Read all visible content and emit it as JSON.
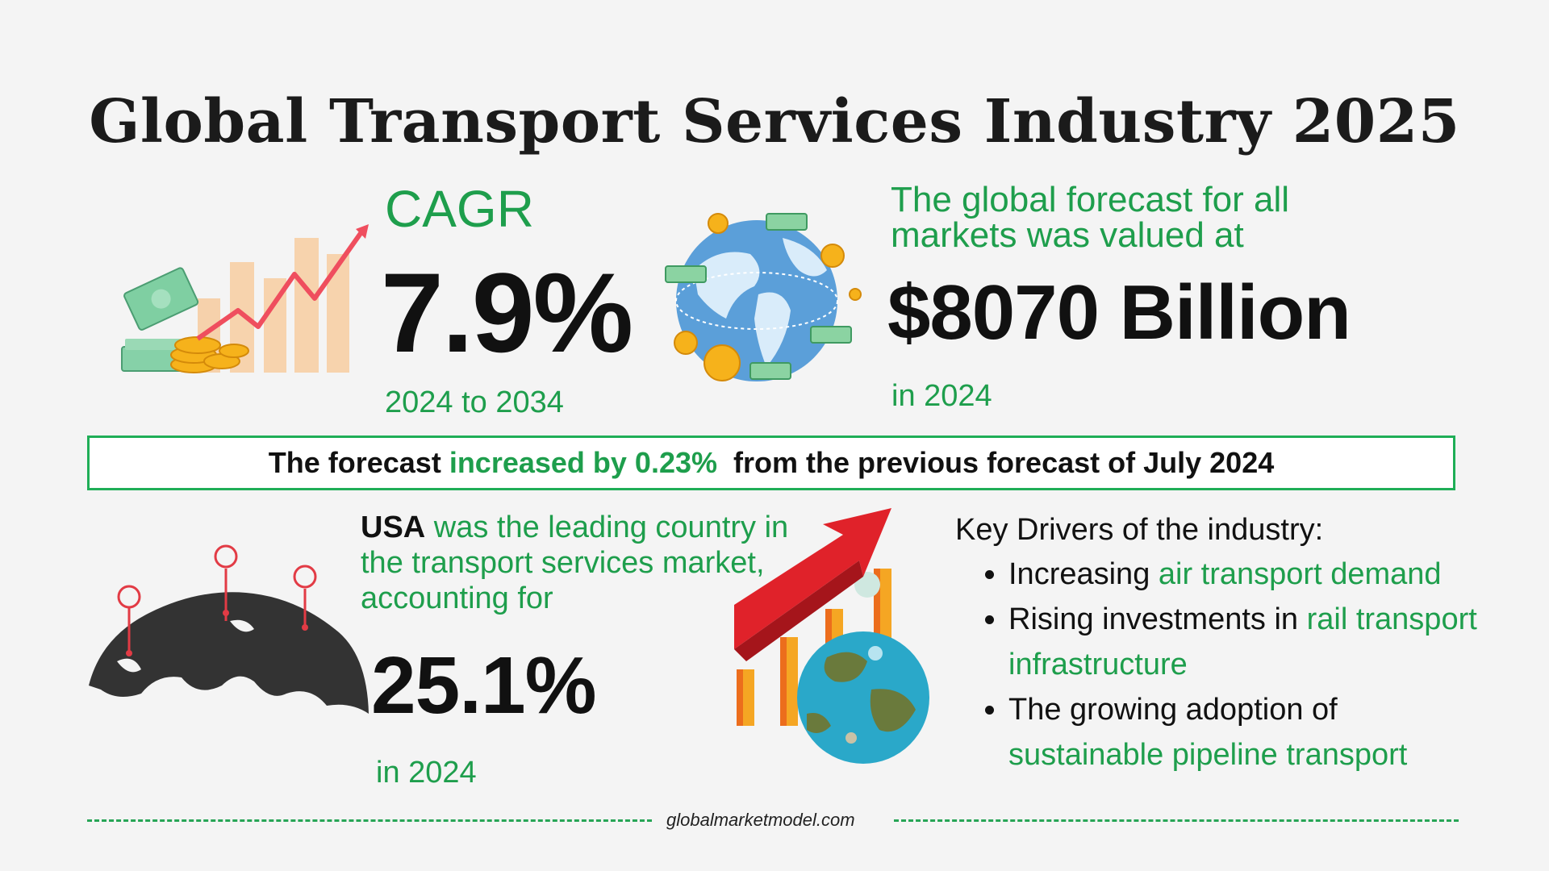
{
  "title": "Global Transport Services Industry 2025",
  "cagr": {
    "label": "CAGR",
    "value": "7.9%",
    "period": "2024 to 2034"
  },
  "forecast": {
    "caption_line1": "The global forecast for all",
    "caption_line2": "markets was valued at",
    "value": "$8070 Billion",
    "year": "in 2024"
  },
  "banner": {
    "prefix": "The forecast ",
    "highlight": "increased by 0.23%",
    "suffix": "  from the previous forecast of July 2024"
  },
  "leading_country": {
    "country": "USA",
    "text": " was the leading country in the transport services market, accounting for",
    "value": "25.1%",
    "year": "in 2024"
  },
  "drivers": {
    "heading": "Key Drivers of the industry:",
    "items": [
      {
        "plain": "Increasing ",
        "highlight": "air transport demand"
      },
      {
        "plain": "Rising investments in ",
        "highlight": "rail transport infrastructure"
      },
      {
        "plain": "The growing adoption of ",
        "highlight": "sustainable pipeline transport"
      }
    ]
  },
  "footer": {
    "site": "globalmarketmodel.com"
  },
  "colors": {
    "accent_green": "#1e9e4c",
    "border_green": "#1fae57",
    "text_dark": "#111111"
  },
  "icons": [
    "money-growth-icon",
    "globe-money-icon",
    "world-map-pins-icon",
    "growth-chart-globe-icon"
  ]
}
